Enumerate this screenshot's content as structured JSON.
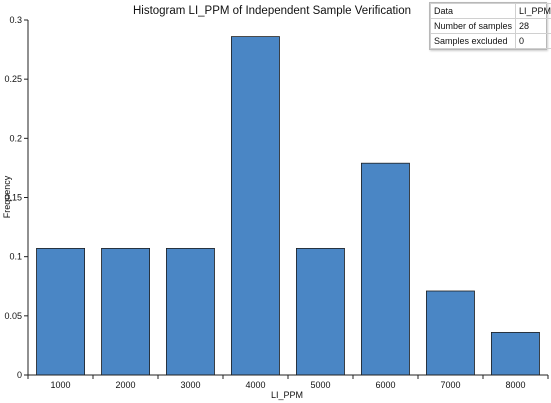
{
  "chart_data": {
    "type": "bar",
    "title": "Histogram  LI_PPM of Independent Sample Verification",
    "xlabel": "LI_PPM",
    "ylabel": "Frequency",
    "categories": [
      "1000",
      "2000",
      "3000",
      "4000",
      "5000",
      "6000",
      "7000",
      "8000"
    ],
    "values": [
      0.107,
      0.107,
      0.107,
      0.286,
      0.107,
      0.179,
      0.071,
      0.036
    ],
    "ylim": [
      0,
      0.3
    ],
    "yticks": [
      "0",
      "0.05",
      "0.1",
      "0.15",
      "0.2",
      "0.25",
      "0.3"
    ],
    "grid": false,
    "bar_color": "#4a86c5",
    "bar_edge_color": "#1f1f1f"
  },
  "info_table": {
    "rows": [
      {
        "key": "Data",
        "value": "LI_PPM"
      },
      {
        "key": "Number of samples",
        "value": "28"
      },
      {
        "key": "Samples excluded",
        "value": "0"
      }
    ]
  }
}
